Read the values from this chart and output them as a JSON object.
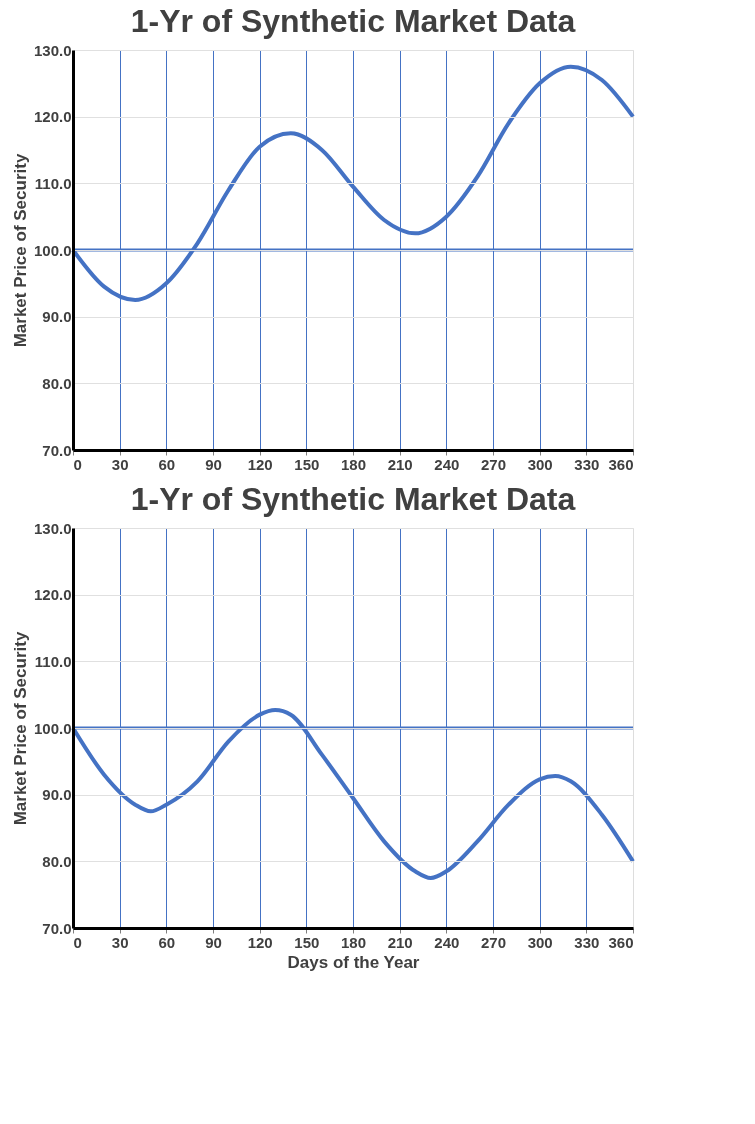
{
  "chart_data": [
    {
      "type": "line",
      "title": "1-Yr of Synthetic Market Data",
      "ylabel": "Market Price of Security",
      "x": [
        0,
        20,
        40,
        60,
        80,
        100,
        120,
        140,
        160,
        180,
        200,
        220,
        240,
        260,
        280,
        300,
        320,
        340,
        360
      ],
      "series": [
        {
          "color": "#4472c4",
          "values": [
            100,
            94.5,
            92.5,
            95,
            101,
            109,
            115.5,
            117.5,
            115,
            109.5,
            104.5,
            102.5,
            105,
            111,
            119,
            125,
            127.5,
            125.5,
            120
          ]
        }
      ],
      "ref_lines": [
        {
          "axis": "y",
          "value": 100,
          "color": "#4472c4"
        }
      ],
      "xlim": [
        0,
        360
      ],
      "xticks": [
        0,
        30,
        60,
        90,
        120,
        150,
        180,
        210,
        240,
        270,
        300,
        330,
        360
      ],
      "ylim": [
        70,
        130
      ],
      "yticks": [
        {
          "value": 70,
          "label": "70.0"
        },
        {
          "value": 80,
          "label": "80.0"
        },
        {
          "value": 90,
          "label": "90.0"
        },
        {
          "value": 100,
          "label": "100.0"
        },
        {
          "value": 110,
          "label": "110.0"
        },
        {
          "value": 120,
          "label": "120.0"
        },
        {
          "value": 130,
          "label": "130.0"
        }
      ],
      "grid": true
    },
    {
      "type": "line",
      "title": "1-Yr of Synthetic Market Data",
      "xlabel": "Days of the Year",
      "ylabel": "Market Price of Security",
      "x": [
        0,
        20,
        40,
        50,
        60,
        80,
        100,
        120,
        130,
        140,
        160,
        180,
        200,
        220,
        230,
        240,
        260,
        280,
        300,
        310,
        320,
        340,
        360
      ],
      "series": [
        {
          "color": "#4472c4",
          "values": [
            100,
            93,
            88.5,
            87.5,
            88.5,
            92,
            98,
            102,
            102.7,
            102,
            96,
            89.5,
            83,
            78.5,
            77.5,
            78.5,
            83,
            88.5,
            92.3,
            92.8,
            92,
            87,
            80
          ]
        }
      ],
      "ref_lines": [
        {
          "axis": "y",
          "value": 100,
          "color": "#4472c4"
        }
      ],
      "xlim": [
        0,
        360
      ],
      "xticks": [
        0,
        30,
        60,
        90,
        120,
        150,
        180,
        210,
        240,
        270,
        300,
        330,
        360
      ],
      "ylim": [
        70,
        130
      ],
      "yticks": [
        {
          "value": 70,
          "label": "70.0"
        },
        {
          "value": 80,
          "label": "80.0"
        },
        {
          "value": 90,
          "label": "90.0"
        },
        {
          "value": 100,
          "label": "100.0"
        },
        {
          "value": 110,
          "label": "110.0"
        },
        {
          "value": 120,
          "label": "120.0"
        },
        {
          "value": 130,
          "label": "130.0"
        }
      ],
      "grid": true
    }
  ]
}
